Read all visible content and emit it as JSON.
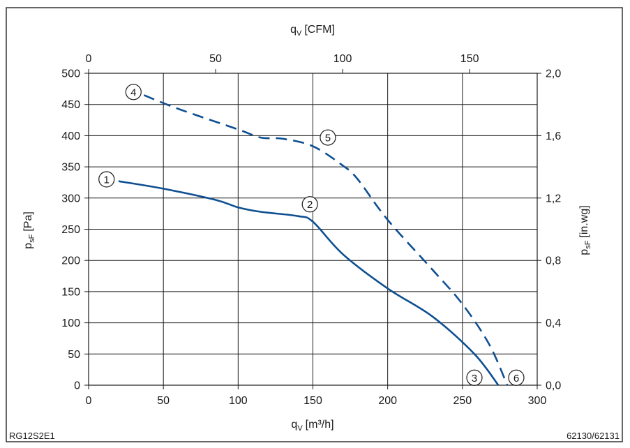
{
  "chart_data": {
    "type": "line",
    "title": "",
    "bottom_axis": {
      "label": {
        "main": "q",
        "sub": "V",
        "unit": "[m³/h]"
      },
      "range": [
        0,
        300
      ],
      "ticks": [
        "0",
        "50",
        "100",
        "150",
        "200",
        "250",
        "300"
      ],
      "tick_values": [
        0,
        50,
        100,
        150,
        200,
        250,
        300
      ]
    },
    "top_axis": {
      "label": {
        "main": "q",
        "sub": "V",
        "unit": "[CFM]"
      },
      "range": [
        0,
        176.6
      ],
      "ticks": [
        "0",
        "50",
        "100",
        "150"
      ],
      "tick_values": [
        0,
        50,
        100,
        150
      ]
    },
    "left_axis": {
      "label": {
        "main": "p",
        "sub": "sF",
        "unit": "[Pa]"
      },
      "range": [
        0,
        500
      ],
      "ticks": [
        "0",
        "50",
        "100",
        "150",
        "200",
        "250",
        "300",
        "350",
        "400",
        "450",
        "500"
      ],
      "tick_values": [
        0,
        50,
        100,
        150,
        200,
        250,
        300,
        350,
        400,
        450,
        500
      ]
    },
    "right_axis": {
      "label": {
        "main": "p",
        "sub": "sF",
        "unit": "[in.wg]"
      },
      "range": [
        0,
        2.0
      ],
      "ticks": [
        "0,0",
        "0,4",
        "0,8",
        "1,2",
        "1,6",
        "2,0"
      ],
      "tick_values": [
        0,
        0.4,
        0.8,
        1.2,
        1.6,
        2.0
      ]
    },
    "grid": true,
    "series": [
      {
        "style": "solid",
        "color": "#0e4f91",
        "x": [
          20,
          50,
          85,
          100,
          115,
          140,
          150,
          170,
          200,
          230,
          258,
          274
        ],
        "y": [
          327,
          315,
          297,
          285,
          278,
          271,
          262,
          210,
          155,
          110,
          50,
          0
        ]
      },
      {
        "style": "dashed",
        "color": "#0e4f91",
        "x": [
          37,
          60,
          100,
          115,
          130,
          150,
          170,
          180,
          200,
          230,
          250,
          268,
          280
        ],
        "y": [
          465,
          443,
          410,
          397,
          395,
          383,
          352,
          330,
          265,
          185,
          130,
          65,
          0
        ]
      }
    ],
    "annotations": [
      {
        "label": "1",
        "x": 12,
        "y": 330
      },
      {
        "label": "2",
        "x": 148,
        "y": 290
      },
      {
        "label": "3",
        "x": 258,
        "y": 12
      },
      {
        "label": "4",
        "x": 30,
        "y": 470
      },
      {
        "label": "5",
        "x": 160,
        "y": 397
      },
      {
        "label": "6",
        "x": 286,
        "y": 12
      }
    ]
  },
  "footer": {
    "left": "RG12S2E1",
    "right": "62130/62131"
  }
}
